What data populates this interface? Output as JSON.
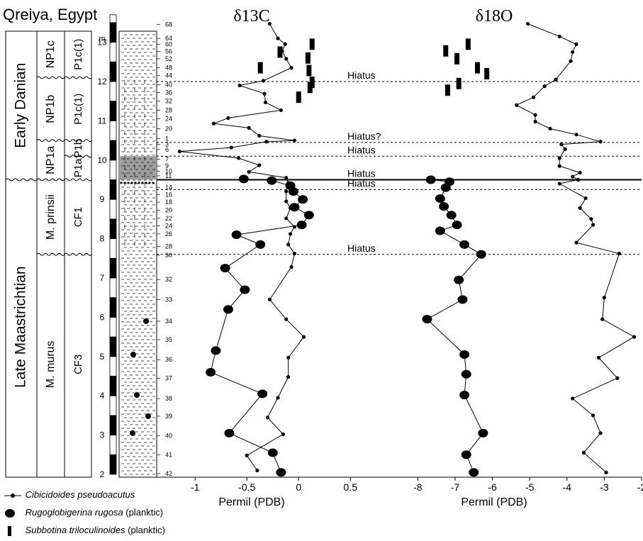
{
  "chart_data": {
    "type": "scatter",
    "title": "Qreiya, Egypt",
    "depth_unit": "m",
    "depth_ticks": [
      "2",
      "3",
      "4",
      "5",
      "6",
      "7",
      "8",
      "9",
      "10",
      "11",
      "12",
      "13"
    ],
    "ylim": [
      2,
      13.7
    ],
    "stages": [
      {
        "label": "Early Danian",
        "range": [
          9.5,
          13.7
        ]
      },
      {
        "label": "Late Maastrichtian",
        "range": [
          2,
          9.5
        ]
      }
    ],
    "nannofossil_zones": [
      {
        "label": "NP1c",
        "range": [
          12.1,
          13.7
        ]
      },
      {
        "label": "NP1b",
        "range": [
          10.5,
          12.1
        ]
      },
      {
        "label": "NP1a",
        "range": [
          9.5,
          10.5
        ]
      },
      {
        "label": "M. prinsii",
        "range": [
          7.6,
          9.5
        ]
      },
      {
        "label": "M. murus",
        "range": [
          2,
          7.6
        ]
      }
    ],
    "foram_zones": [
      {
        "label": "P1c(1)",
        "range": [
          12.1,
          13.7
        ]
      },
      {
        "label": "P1c(1)",
        "range": [
          10.5,
          12.1
        ]
      },
      {
        "label": "P1b",
        "range": [
          10.1,
          10.5
        ]
      },
      {
        "label": "P1a",
        "range": [
          9.5,
          10.1
        ]
      },
      {
        "label": "CF1",
        "range": [
          7.6,
          9.5
        ]
      },
      {
        "label": "CF3",
        "range": [
          2,
          7.6
        ]
      }
    ],
    "sample_labels": [
      {
        "label": "68",
        "depth": 13.45
      },
      {
        "label": "64",
        "depth": 13.1
      },
      {
        "label": "60",
        "depth": 12.95
      },
      {
        "label": "56",
        "depth": 12.77
      },
      {
        "label": "52",
        "depth": 12.58
      },
      {
        "label": "48",
        "depth": 12.35
      },
      {
        "label": "44",
        "depth": 12.15
      },
      {
        "label": "40",
        "depth": 11.92
      },
      {
        "label": "36",
        "depth": 11.72
      },
      {
        "label": "32",
        "depth": 11.5
      },
      {
        "label": "28",
        "depth": 11.27
      },
      {
        "label": "24",
        "depth": 11.05
      },
      {
        "label": "20",
        "depth": 10.8
      },
      {
        "label": "1",
        "depth": 10.55
      },
      {
        "label": "3",
        "depth": 10.4
      },
      {
        "label": "6",
        "depth": 10.27
      },
      {
        "label": "7",
        "depth": 10.02
      },
      {
        "label": "9",
        "depth": 9.85
      },
      {
        "label": "10",
        "depth": 9.72
      },
      {
        "label": "11",
        "depth": 9.6
      },
      {
        "label": "14",
        "depth": 9.3
      },
      {
        "label": "16",
        "depth": 9.12
      },
      {
        "label": "18",
        "depth": 8.93
      },
      {
        "label": "20",
        "depth": 8.72
      },
      {
        "label": "22",
        "depth": 8.52
      },
      {
        "label": "24",
        "depth": 8.33
      },
      {
        "label": "26",
        "depth": 8.12
      },
      {
        "label": "28",
        "depth": 7.8
      },
      {
        "label": "30",
        "depth": 7.58
      },
      {
        "label": "32",
        "depth": 6.96
      },
      {
        "label": "33",
        "depth": 6.45
      },
      {
        "label": "34",
        "depth": 5.9
      },
      {
        "label": "35",
        "depth": 5.43
      },
      {
        "label": "36",
        "depth": 4.92
      },
      {
        "label": "37",
        "depth": 4.45
      },
      {
        "label": "38",
        "depth": 3.93
      },
      {
        "label": "39",
        "depth": 3.48
      },
      {
        "label": "40",
        "depth": 2.98
      },
      {
        "label": "41",
        "depth": 2.5
      },
      {
        "label": "42",
        "depth": 2.02
      }
    ],
    "hiatuses": [
      {
        "label": "Hiatus",
        "depth": 12.0
      },
      {
        "label": "Hiatus?",
        "depth": 10.45
      },
      {
        "label": "Hiatus",
        "depth": 10.1
      },
      {
        "label": "Hiatus",
        "depth": 9.5
      },
      {
        "label": "Hiatus",
        "depth": 9.25
      },
      {
        "label": "Hiatus",
        "depth": 7.6
      }
    ],
    "panels": [
      {
        "title": "δ13C",
        "xlabel": "Permil (PDB)",
        "xlim": [
          -1.2,
          0.95
        ],
        "xticks": [
          "-1",
          "-0.5",
          "0",
          "0.5"
        ],
        "series": [
          {
            "name": "Cibicidoides pseudoacutus",
            "marker": "dot",
            "points": [
              [
                -0.28,
                13.47
              ],
              [
                -0.2,
                13.1
              ],
              [
                -0.13,
                12.95
              ],
              [
                -0.16,
                12.78
              ],
              [
                -0.12,
                12.58
              ],
              [
                -0.07,
                12.35
              ],
              [
                -0.34,
                12.02
              ],
              [
                -0.57,
                11.9
              ],
              [
                -0.33,
                11.69
              ],
              [
                -0.32,
                11.47
              ],
              [
                -0.17,
                11.27
              ],
              [
                -0.68,
                11.07
              ],
              [
                -0.82,
                10.93
              ],
              [
                -0.48,
                10.82
              ],
              [
                -0.38,
                10.62
              ],
              [
                -0.04,
                10.5
              ],
              [
                -0.31,
                10.47
              ],
              [
                -0.65,
                10.32
              ],
              [
                -1.15,
                10.22
              ],
              [
                -0.58,
                10.05
              ],
              [
                -0.38,
                9.87
              ],
              [
                -0.48,
                9.7
              ],
              [
                -0.12,
                9.55
              ],
              [
                -0.1,
                9.42
              ],
              [
                -0.12,
                9.2
              ],
              [
                -0.12,
                8.95
              ],
              [
                -0.08,
                8.78
              ],
              [
                -0.12,
                8.52
              ],
              [
                -0.04,
                8.3
              ],
              [
                -0.08,
                8.12
              ],
              [
                -0.1,
                7.85
              ],
              [
                -0.04,
                7.62
              ],
              [
                -0.07,
                7.28
              ],
              [
                -0.28,
                6.45
              ],
              [
                -0.12,
                5.95
              ],
              [
                0.05,
                5.5
              ],
              [
                -0.1,
                4.97
              ],
              [
                -0.1,
                4.48
              ],
              [
                -0.2,
                3.95
              ],
              [
                -0.3,
                3.45
              ],
              [
                -0.15,
                3.02
              ],
              [
                -0.5,
                2.48
              ],
              [
                -0.4,
                2.1
              ]
            ]
          },
          {
            "name": "Rugoglobigerina rugosa",
            "marker": "big-dot",
            "points": [
              [
                -0.53,
                9.52
              ],
              [
                -0.26,
                9.48
              ],
              [
                -0.08,
                9.35
              ],
              [
                -0.05,
                9.2
              ],
              [
                0.04,
                9.0
              ],
              [
                -0.04,
                8.8
              ],
              [
                0.1,
                8.6
              ],
              [
                0.03,
                8.35
              ],
              [
                -0.6,
                8.1
              ],
              [
                -0.37,
                7.85
              ],
              [
                -0.71,
                7.25
              ],
              [
                -0.52,
                6.7
              ],
              [
                -0.68,
                6.2
              ],
              [
                -0.8,
                5.15
              ],
              [
                -0.85,
                4.6
              ],
              [
                -0.35,
                4.05
              ],
              [
                -0.67,
                3.05
              ],
              [
                -0.25,
                2.55
              ],
              [
                -0.17,
                2.05
              ]
            ]
          },
          {
            "name": "Subbotina triloculinoides",
            "marker": "bar",
            "points": [
              [
                0.13,
                12.95
              ],
              [
                -0.18,
                12.75
              ],
              [
                0.09,
                12.6
              ],
              [
                -0.37,
                12.35
              ],
              [
                0.1,
                12.28
              ],
              [
                0.13,
                11.98
              ],
              [
                0.11,
                11.85
              ],
              [
                0.0,
                11.6
              ]
            ]
          }
        ]
      },
      {
        "title": "δ18O",
        "xlabel": "Permil (PDB)",
        "xlim": [
          -8.5,
          -2.0
        ],
        "xticks": [
          "-8",
          "-7",
          "-6",
          "-5",
          "-4",
          "-3",
          "-2"
        ],
        "series": [
          {
            "name": "Cibicidoides pseudoacutus",
            "marker": "dot",
            "points": [
              [
                -5.05,
                13.47
              ],
              [
                -4.2,
                13.15
              ],
              [
                -3.75,
                12.95
              ],
              [
                -3.85,
                12.75
              ],
              [
                -3.9,
                12.52
              ],
              [
                -4.3,
                12.05
              ],
              [
                -4.6,
                11.88
              ],
              [
                -4.9,
                11.6
              ],
              [
                -5.35,
                11.4
              ],
              [
                -4.85,
                11.15
              ],
              [
                -4.85,
                10.98
              ],
              [
                -4.45,
                10.8
              ],
              [
                -3.75,
                10.65
              ],
              [
                -3.1,
                10.47
              ],
              [
                -4.15,
                10.4
              ],
              [
                -4.05,
                10.28
              ],
              [
                -4.2,
                10.05
              ],
              [
                -4.2,
                9.85
              ],
              [
                -3.65,
                9.68
              ],
              [
                -3.85,
                9.58
              ],
              [
                -3.7,
                9.5
              ],
              [
                -4.2,
                9.4
              ],
              [
                -3.5,
                9.03
              ],
              [
                -3.65,
                8.78
              ],
              [
                -3.35,
                8.5
              ],
              [
                -3.3,
                8.35
              ],
              [
                -3.75,
                7.9
              ],
              [
                -2.6,
                7.62
              ],
              [
                -3.0,
                6.5
              ],
              [
                -3.05,
                5.95
              ],
              [
                -2.2,
                5.5
              ],
              [
                -3.15,
                4.97
              ],
              [
                -2.65,
                4.45
              ],
              [
                -3.85,
                3.93
              ],
              [
                -3.3,
                3.5
              ],
              [
                -3.1,
                3.05
              ],
              [
                -3.55,
                2.55
              ],
              [
                -2.95,
                2.05
              ]
            ]
          },
          {
            "name": "Rugoglobigerina rugosa",
            "marker": "big-dot",
            "points": [
              [
                -7.65,
                9.5
              ],
              [
                -7.15,
                9.45
              ],
              [
                -7.25,
                9.3
              ],
              [
                -7.4,
                9.02
              ],
              [
                -7.3,
                8.82
              ],
              [
                -7.1,
                8.6
              ],
              [
                -6.95,
                8.35
              ],
              [
                -7.4,
                8.2
              ],
              [
                -6.75,
                7.85
              ],
              [
                -6.3,
                7.6
              ],
              [
                -6.9,
                6.95
              ],
              [
                -6.8,
                6.45
              ],
              [
                -7.75,
                5.95
              ],
              [
                -6.75,
                5.05
              ],
              [
                -6.7,
                4.55
              ],
              [
                -6.75,
                4.02
              ],
              [
                -6.25,
                3.05
              ],
              [
                -6.7,
                2.5
              ],
              [
                -6.5,
                2.05
              ]
            ]
          },
          {
            "name": "Subbotina triloculinoides",
            "marker": "bar",
            "points": [
              [
                -6.65,
                12.95
              ],
              [
                -7.25,
                12.78
              ],
              [
                -6.95,
                12.58
              ],
              [
                -6.4,
                12.35
              ],
              [
                -6.15,
                12.2
              ],
              [
                -6.9,
                11.95
              ],
              [
                -7.2,
                11.78
              ]
            ]
          }
        ]
      }
    ]
  },
  "legend": {
    "items": [
      {
        "marker": "dot",
        "name": "Cibicidoides pseudoacutus",
        "note": ""
      },
      {
        "marker": "big-dot",
        "name": "Rugoglobigerina rugosa",
        "note": "(planktic)"
      },
      {
        "marker": "bar",
        "name": "Subbotina triloculinoides",
        "note": "(planktic)"
      }
    ]
  }
}
